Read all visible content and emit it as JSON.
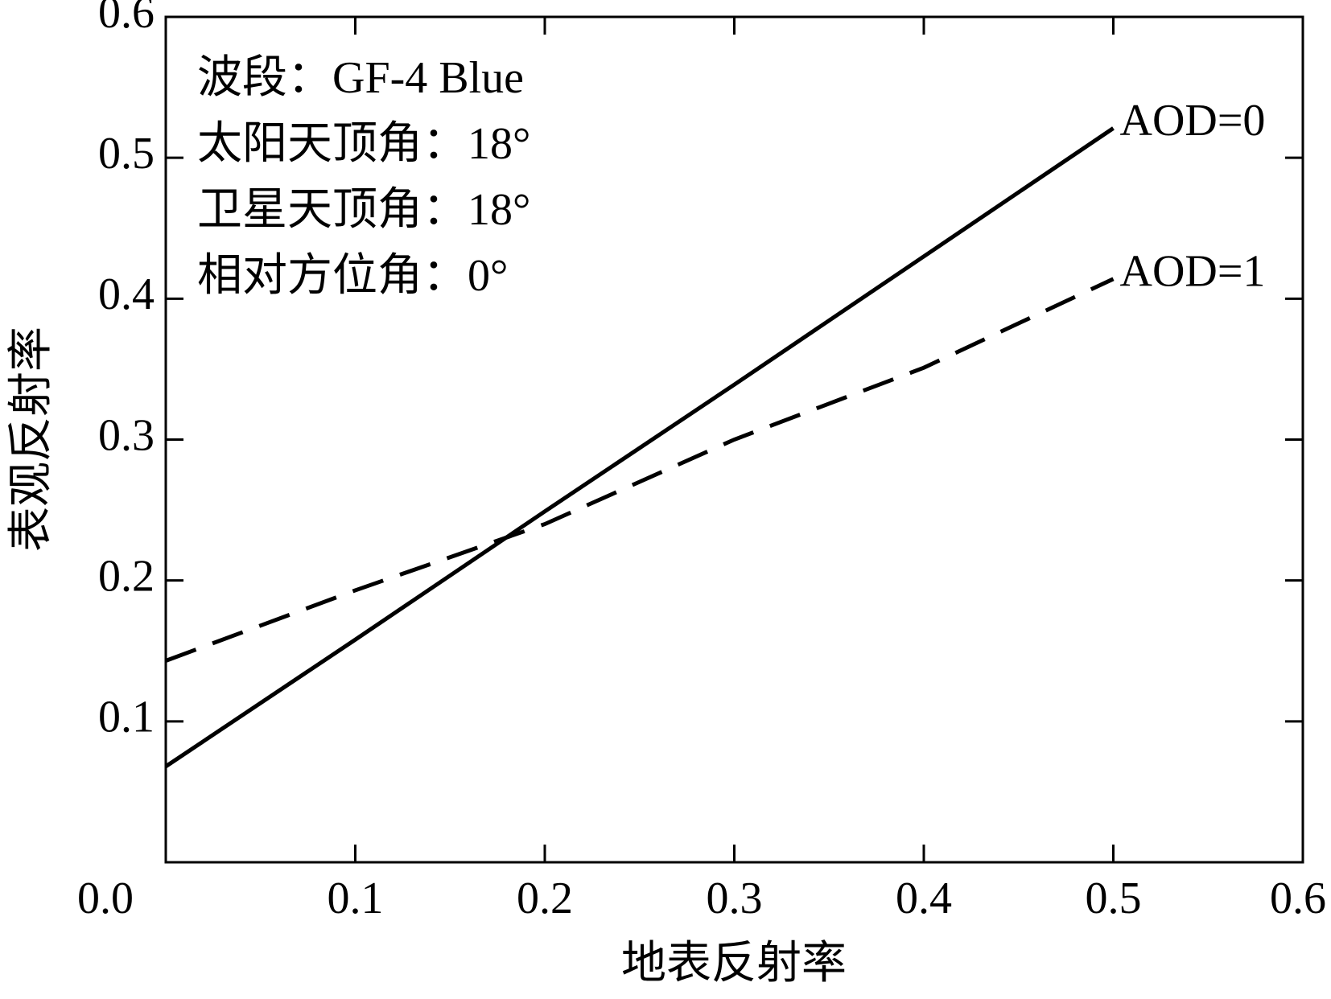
{
  "chart_data": {
    "type": "line",
    "xlabel": "地表反射率",
    "ylabel": "表观反射率",
    "annotations": [
      "波段：GF-4 Blue",
      "太阳天顶角：18°",
      "卫星天顶角：18°",
      "相对方位角：0°"
    ],
    "x": [
      0,
      0.1,
      0.2,
      0.3,
      0.4,
      0.5
    ],
    "series": [
      {
        "name": "AOD=0",
        "color": "#000000",
        "dash": "solid",
        "values": [
          0.068,
          0.158,
          0.249,
          0.339,
          0.43,
          0.521
        ]
      },
      {
        "name": "AOD=1",
        "color": "#000000",
        "dash": "dashed",
        "values": [
          0.143,
          0.193,
          0.24,
          0.3,
          0.351,
          0.414
        ]
      }
    ],
    "xlim": [
      0,
      0.6
    ],
    "ylim": [
      0,
      0.6
    ],
    "xticks": [
      {
        "value": 0,
        "label": "0.0"
      },
      0.1,
      0.2,
      0.3,
      0.4,
      0.5,
      0.6
    ],
    "yticks": [
      0.1,
      0.2,
      0.3,
      0.4,
      0.5,
      0.6
    ],
    "grid": false
  }
}
